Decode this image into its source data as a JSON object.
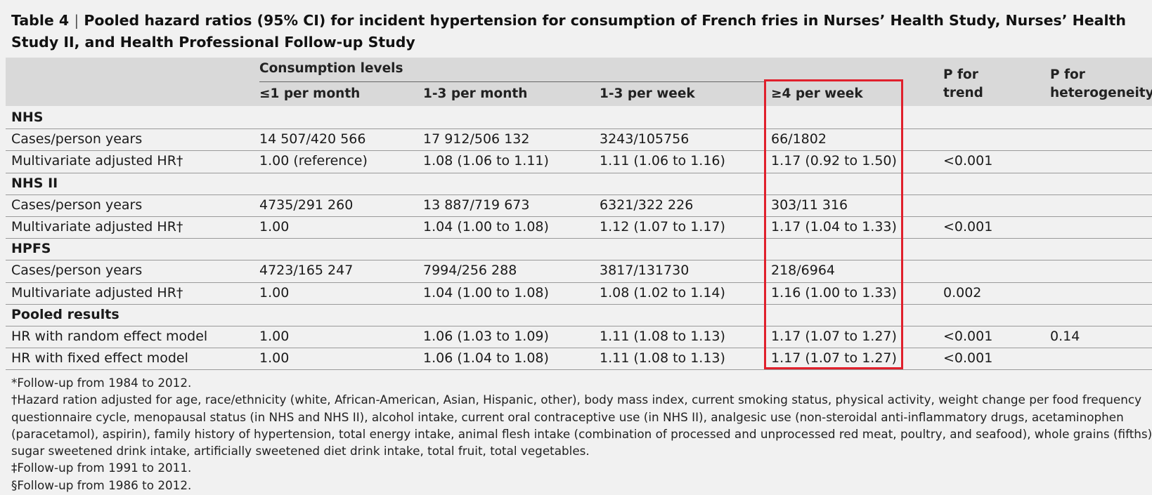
{
  "table": {
    "label": "Table 4",
    "separator": "|",
    "title": "Pooled hazard ratios (95% CI) for incident hypertension for consumption of French fries in Nurses’ Health Study, Nurses’ Health Study II, and Health Professional Follow-up Study",
    "header": {
      "group_label": "Consumption levels",
      "levels": [
        "≤1 per month",
        "1-3 per month",
        "1-3 per week",
        "≥4 per week"
      ],
      "p_trend": [
        "P for",
        "trend"
      ],
      "p_het": [
        "P for",
        "heterogeneity"
      ]
    },
    "sections": [
      {
        "name": "NHS",
        "rows": [
          {
            "label": "Cases/person years",
            "c1": "14 507/420 566",
            "c2": "17 912/506 132",
            "c3": "3243/105756",
            "c4": "66/1802",
            "trend": "",
            "het": ""
          },
          {
            "label": "Multivariate adjusted HR†",
            "c1": "1.00 (reference)",
            "c2": "1.08 (1.06 to 1.11)",
            "c3": "1.11 (1.06 to 1.16)",
            "c4": "1.17 (0.92 to 1.50)",
            "trend": "<0.001",
            "het": ""
          }
        ]
      },
      {
        "name": "NHS II",
        "rows": [
          {
            "label": "Cases/person years",
            "c1": "4735/291 260",
            "c2": "13 887/719 673",
            "c3": "6321/322 226",
            "c4": "303/11 316",
            "trend": "",
            "het": ""
          },
          {
            "label": "Multivariate adjusted HR†",
            "c1": "1.00",
            "c2": "1.04 (1.00 to 1.08)",
            "c3": "1.12 (1.07 to 1.17)",
            "c4": "1.17 (1.04 to 1.33)",
            "trend": "<0.001",
            "het": ""
          }
        ]
      },
      {
        "name": "HPFS",
        "rows": [
          {
            "label": "Cases/person years",
            "c1": "4723/165 247",
            "c2": "7994/256 288",
            "c3": "3817/131730",
            "c4": "218/6964",
            "trend": "",
            "het": ""
          },
          {
            "label": "Multivariate adjusted HR†",
            "c1": "1.00",
            "c2": "1.04 (1.00 to 1.08)",
            "c3": "1.08 (1.02 to 1.14)",
            "c4": "1.16 (1.00 to 1.33)",
            "trend": "0.002",
            "het": ""
          }
        ]
      },
      {
        "name": "Pooled results",
        "rows": [
          {
            "label": "HR with random effect model",
            "c1": "1.00",
            "c2": "1.06 (1.03 to 1.09)",
            "c3": "1.11 (1.08 to 1.13)",
            "c4": "1.17 (1.07 to 1.27)",
            "trend": "<0.001",
            "het": "0.14"
          },
          {
            "label": "HR with fixed effect model",
            "c1": "1.00",
            "c2": "1.06 (1.04 to 1.08)",
            "c3": "1.11 (1.08 to 1.13)",
            "c4": "1.17 (1.07 to 1.27)",
            "trend": "<0.001",
            "het": ""
          }
        ]
      }
    ],
    "footnotes": [
      "*Follow-up from 1984 to 2012.",
      "†Hazard ration adjusted for age, race/ethnicity (white, African-American, Asian, Hispanic, other), body mass index, current smoking status, physical activity, weight change per food frequency",
      "questionnaire cycle, menopausal status (in NHS and NHS II), alcohol intake, current oral contraceptive use (in NHS II), analgesic use (non-steroidal anti-inflammatory drugs, acetaminophen",
      "(paracetamol), aspirin), family history of hypertension, total energy intake, animal flesh intake (combination of processed and unprocessed red meat, poultry, and seafood), whole grains (fifths),",
      "sugar sweetened drink intake, artificially sweetened diet drink intake, total fruit, total vegetables.",
      "‡Follow-up from 1991 to 2011.",
      "§Follow-up from 1986 to 2012."
    ]
  },
  "colors": {
    "background": "#f1f1f1",
    "header_band": "#d9d9d9",
    "highlight_box": "#e0202c"
  }
}
